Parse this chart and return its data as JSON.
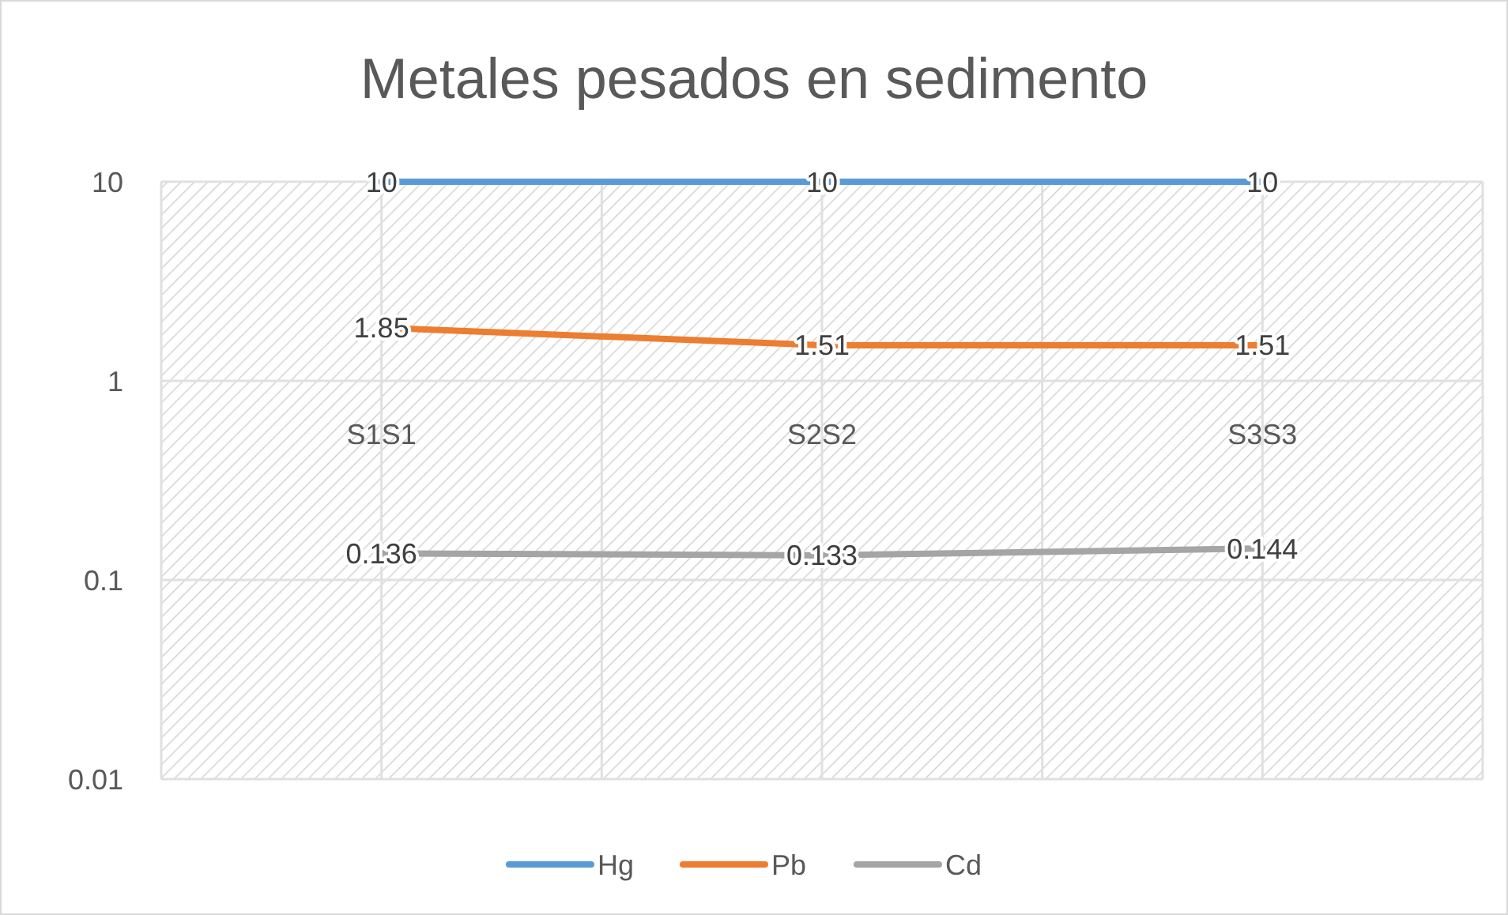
{
  "chart_data": {
    "type": "line",
    "title": "Metales pesados en sedimento",
    "categories": [
      "S1S1",
      "S2S2",
      "S3S3"
    ],
    "series": [
      {
        "name": "Hg",
        "color": "#5b9bd5",
        "values": [
          10,
          10,
          10
        ]
      },
      {
        "name": "Pb",
        "color": "#ed7d31",
        "values": [
          1.85,
          1.51,
          1.51
        ]
      },
      {
        "name": "Cd",
        "color": "#a5a5a5",
        "values": [
          0.136,
          0.133,
          0.144
        ]
      }
    ],
    "log": true,
    "ylim": [
      0.01,
      10
    ],
    "yticks": [
      0.01,
      0.1,
      1,
      10
    ],
    "grid": true,
    "legend": "bottom",
    "data_labels": true,
    "marker": "none",
    "line_style": "solid"
  }
}
